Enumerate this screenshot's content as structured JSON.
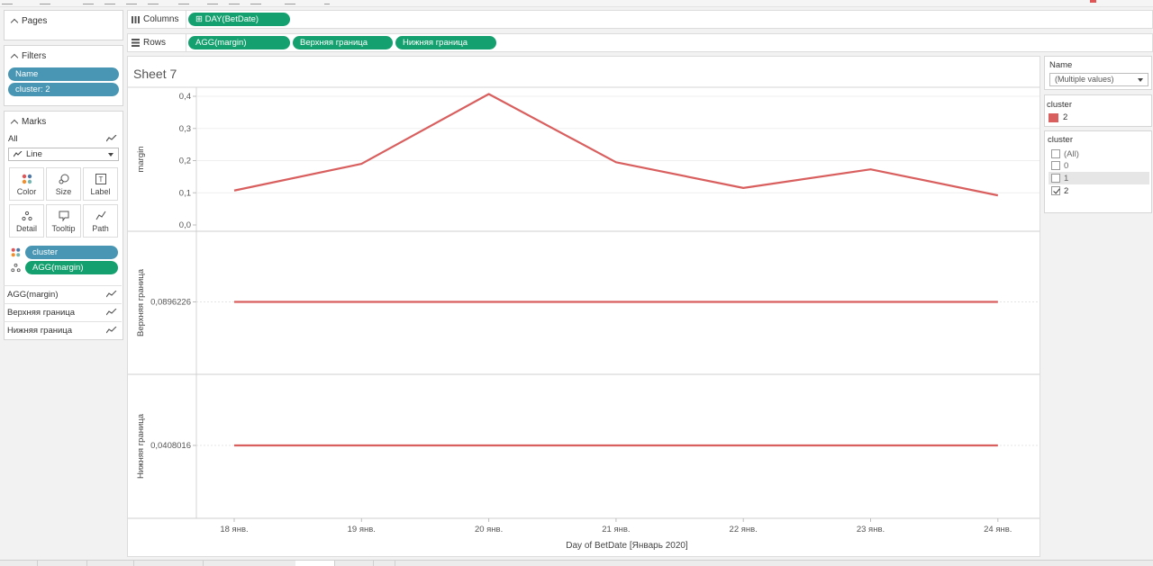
{
  "pages": {
    "title": "Pages"
  },
  "filters": {
    "title": "Filters",
    "pills": [
      "Name",
      "cluster: 2"
    ]
  },
  "marks": {
    "title": "Marks",
    "all_label": "All",
    "mark_type": "Line",
    "buttons": [
      "Color",
      "Size",
      "Label",
      "Detail",
      "Tooltip",
      "Path"
    ],
    "fields": [
      "cluster",
      "AGG(margin)"
    ],
    "sections": [
      "AGG(margin)",
      "Верхняя граница",
      "Нижняя граница"
    ]
  },
  "columns": {
    "label": "Columns",
    "pills": [
      "⊞ DAY(BetDate)"
    ]
  },
  "rows": {
    "label": "Rows",
    "pills": [
      "AGG(margin)",
      "Верхняя граница",
      "Нижняя граница"
    ]
  },
  "sheet": {
    "title": "Sheet 7"
  },
  "legend_name": {
    "title": "Name",
    "value": "(Multiple values)"
  },
  "legend_cluster": {
    "title": "cluster",
    "items": [
      {
        "label": "2",
        "color": "#d95f5f"
      }
    ]
  },
  "filter_cluster": {
    "title": "cluster",
    "options": [
      {
        "label": "(All)",
        "checked": false
      },
      {
        "label": "0",
        "checked": false
      },
      {
        "label": "1",
        "checked": false
      },
      {
        "label": "2",
        "checked": true
      }
    ]
  },
  "colors": {
    "line": "#d95f5f",
    "pill_blue": "#4896b3",
    "pill_green": "#14a06f"
  },
  "chart_data": {
    "type": "line",
    "categories": [
      "18 янв.",
      "19 янв.",
      "20 янв.",
      "21 янв.",
      "22 янв.",
      "23 янв.",
      "24 янв."
    ],
    "xlabel": "Day of BetDate [Январь 2020]",
    "panes": [
      {
        "ylabel": "margin",
        "yticks": [
          "0,4",
          "0,3",
          "0,2",
          "0,1",
          "0,0"
        ],
        "ylim": [
          0,
          0.43
        ],
        "series": [
          {
            "name": "2",
            "values": [
              0.107,
              0.19,
              0.407,
              0.195,
              0.115,
              0.173,
              0.092
            ]
          }
        ]
      },
      {
        "ylabel": "Верхняя граница",
        "yticks": [
          "0,0896226"
        ],
        "series": [
          {
            "name": "2",
            "values": [
              0.0896226,
              0.0896226,
              0.0896226,
              0.0896226,
              0.0896226,
              0.0896226,
              0.0896226
            ]
          }
        ]
      },
      {
        "ylabel": "Нижняя граница",
        "yticks": [
          "0,0408016"
        ],
        "series": [
          {
            "name": "2",
            "values": [
              0.0408016,
              0.0408016,
              0.0408016,
              0.0408016,
              0.0408016,
              0.0408016,
              0.0408016
            ]
          }
        ]
      }
    ]
  }
}
